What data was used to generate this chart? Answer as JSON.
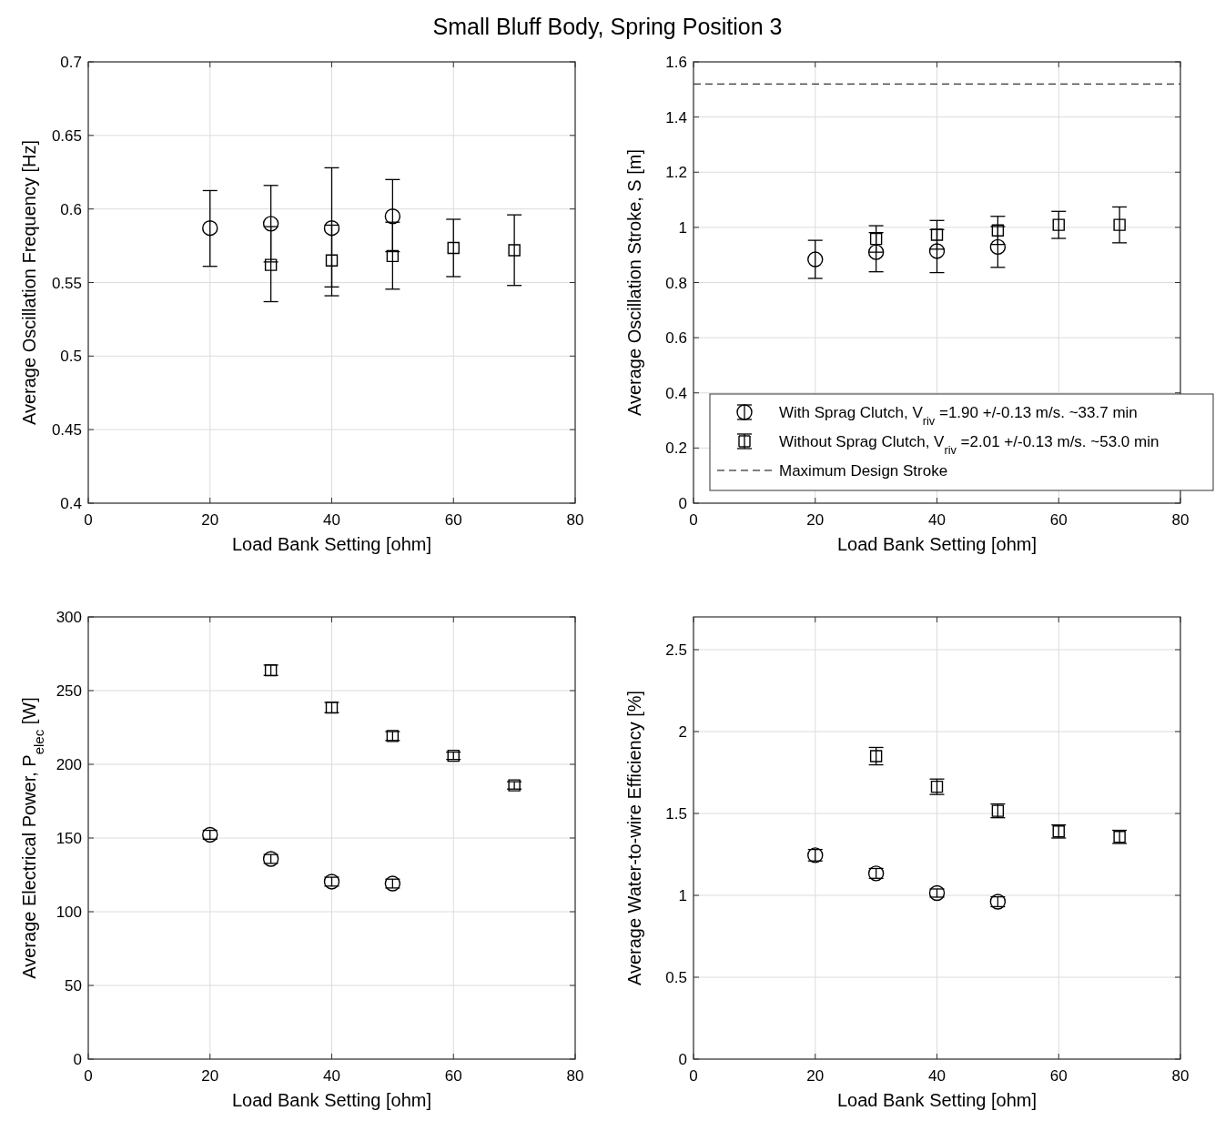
{
  "chart_data": [
    {
      "type": "scatter",
      "title": "Small Bluff Body, Spring Position 3",
      "xlabel": "Load Bank Setting [ohm]",
      "ylabel": "Average Oscillation Frequency [Hz]",
      "xlim": [
        0,
        80
      ],
      "xticks": [
        0,
        20,
        40,
        60,
        80
      ],
      "ylim": [
        0.4,
        0.7
      ],
      "yticks": [
        0.4,
        0.45,
        0.5,
        0.55,
        0.6,
        0.65,
        0.7
      ],
      "grid": true,
      "legend": false,
      "series": [
        {
          "color": "#000000",
          "marker": "circle",
          "x": [
            20,
            30,
            40,
            50
          ],
          "values": [
            0.587,
            0.59,
            0.587,
            0.595
          ],
          "errors": [
            [
              0.561,
              0.6125
            ],
            [
              0.564,
              0.616
            ],
            [
              0.547,
              0.628
            ],
            [
              0.571,
              0.62
            ]
          ]
        },
        {
          "color": "#000000",
          "marker": "square",
          "x": [
            30,
            40,
            50,
            60,
            70
          ],
          "values": [
            0.562,
            0.565,
            0.568,
            0.5735,
            0.572
          ],
          "errors": [
            [
              0.537,
              0.588
            ],
            [
              0.541,
              0.589
            ],
            [
              0.5455,
              0.591
            ],
            [
              0.554,
              0.593
            ],
            [
              0.548,
              0.596
            ]
          ]
        }
      ]
    },
    {
      "type": "scatter",
      "xlabel": "Load Bank Setting [ohm]",
      "ylabel": "Average Oscillation Stroke, S [m]",
      "xlim": [
        0,
        80
      ],
      "xticks": [
        0,
        20,
        40,
        60,
        80
      ],
      "ylim": [
        0,
        1.6
      ],
      "yticks": [
        0,
        0.2,
        0.4,
        0.6,
        0.8,
        1,
        1.2,
        1.4,
        1.6
      ],
      "grid": true,
      "legend": "bottom right",
      "series": [
        {
          "name": "With Sprag Clutch, V$_{riv}$ =1.90 +/-0.13 m/s. ~33.7 min",
          "color": "#000000",
          "marker": "circle",
          "x": [
            20,
            30,
            40,
            50
          ],
          "values": [
            0.884,
            0.91,
            0.914,
            0.929
          ],
          "errors": [
            [
              0.815,
              0.953
            ],
            [
              0.839,
              0.981
            ],
            [
              0.836,
              0.992
            ],
            [
              0.855,
              1.003
            ]
          ]
        },
        {
          "name": "Without Sprag Clutch, V$_{riv}$ =2.01 +/-0.13 m/s. ~53.0 min",
          "color": "#000000",
          "marker": "square",
          "x": [
            30,
            40,
            50,
            60,
            70
          ],
          "values": [
            0.958,
            0.973,
            0.989,
            1.009,
            1.009
          ],
          "errors": [
            [
              0.91,
              1.006
            ],
            [
              0.921,
              1.025
            ],
            [
              0.938,
              1.04
            ],
            [
              0.96,
              1.058
            ],
            [
              0.944,
              1.074
            ]
          ]
        }
      ],
      "ref_lines": [
        {
          "axis": "y",
          "value": 1.52,
          "label": "Maximum Design Stroke",
          "color": "#000000",
          "line_style": "dashed"
        }
      ]
    },
    {
      "type": "scatter",
      "xlabel": "Load Bank Setting [ohm]",
      "ylabel": "Average Electrical Power,  P$_{elec}$  [W]",
      "xlim": [
        0,
        80
      ],
      "xticks": [
        0,
        20,
        40,
        60,
        80
      ],
      "ylim": [
        0,
        300
      ],
      "yticks": [
        0,
        50,
        100,
        150,
        200,
        250,
        300
      ],
      "grid": true,
      "legend": false,
      "series": [
        {
          "color": "#000000",
          "marker": "circle",
          "x": [
            20,
            30,
            40,
            50
          ],
          "values": [
            152.2,
            135.8,
            120.4,
            119.1
          ],
          "errors": [
            3,
            3,
            3,
            3
          ]
        },
        {
          "color": "#000000",
          "marker": "square",
          "x": [
            30,
            40,
            50,
            60,
            70
          ],
          "values": [
            263.8,
            238.5,
            219.2,
            205.8,
            185.7
          ],
          "errors": [
            3.5,
            3.5,
            3,
            2.5,
            2.5
          ]
        }
      ]
    },
    {
      "type": "scatter",
      "xlabel": "Load Bank Setting [ohm]",
      "ylabel": "Average Water-to-wire Efficiency [%]",
      "xlim": [
        0,
        80
      ],
      "xticks": [
        0,
        20,
        40,
        60,
        80
      ],
      "ylim": [
        0,
        2.7
      ],
      "yticks": [
        0,
        0.5,
        1,
        1.5,
        2,
        2.5
      ],
      "grid": true,
      "legend": false,
      "series": [
        {
          "color": "#000000",
          "marker": "circle",
          "x": [
            20,
            30,
            40,
            50
          ],
          "values": [
            1.245,
            1.134,
            1.014,
            0.961
          ],
          "errors": [
            0.035,
            0.03,
            0.025,
            0.03
          ]
        },
        {
          "color": "#000000",
          "marker": "square",
          "x": [
            30,
            40,
            50,
            60,
            70
          ],
          "values": [
            1.85,
            1.663,
            1.516,
            1.39,
            1.357
          ],
          "errors": [
            0.053,
            0.047,
            0.042,
            0.04,
            0.04
          ]
        }
      ]
    }
  ]
}
